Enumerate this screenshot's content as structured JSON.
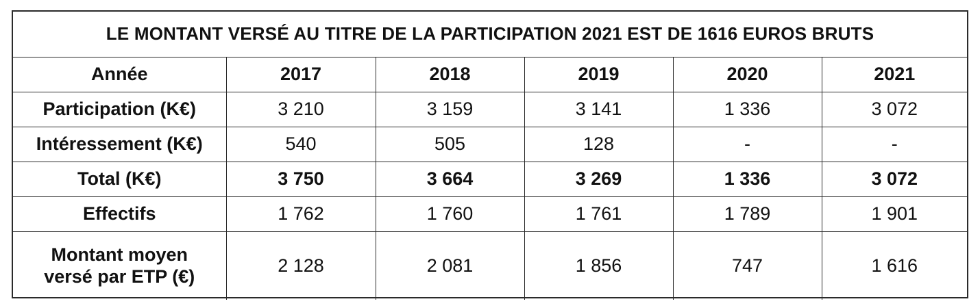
{
  "title": "LE MONTANT VERSÉ AU TITRE DE LA PARTICIPATION 2021 EST DE 1616 EUROS BRUTS",
  "header": {
    "label": "Année",
    "years": [
      "2017",
      "2018",
      "2019",
      "2020",
      "2021"
    ]
  },
  "rows": [
    {
      "label": "Participation (K€)",
      "values": [
        "3 210",
        "3 159",
        "3 141",
        "1 336",
        "3 072"
      ]
    },
    {
      "label": "Intéressement (K€)",
      "values": [
        "540",
        "505",
        "128",
        "-",
        "-"
      ]
    },
    {
      "label": "Total (K€)",
      "values": [
        "3 750",
        "3 664",
        "3 269",
        "1 336",
        "3 072"
      ]
    },
    {
      "label": "Effectifs",
      "values": [
        "1 762",
        "1 760",
        "1 761",
        "1 789",
        "1 901"
      ]
    },
    {
      "label_line1": "Montant moyen",
      "label_line2": "versé par ETP (€)",
      "values": [
        "2 128",
        "2 081",
        "1 856",
        "747",
        "1 616"
      ]
    }
  ]
}
